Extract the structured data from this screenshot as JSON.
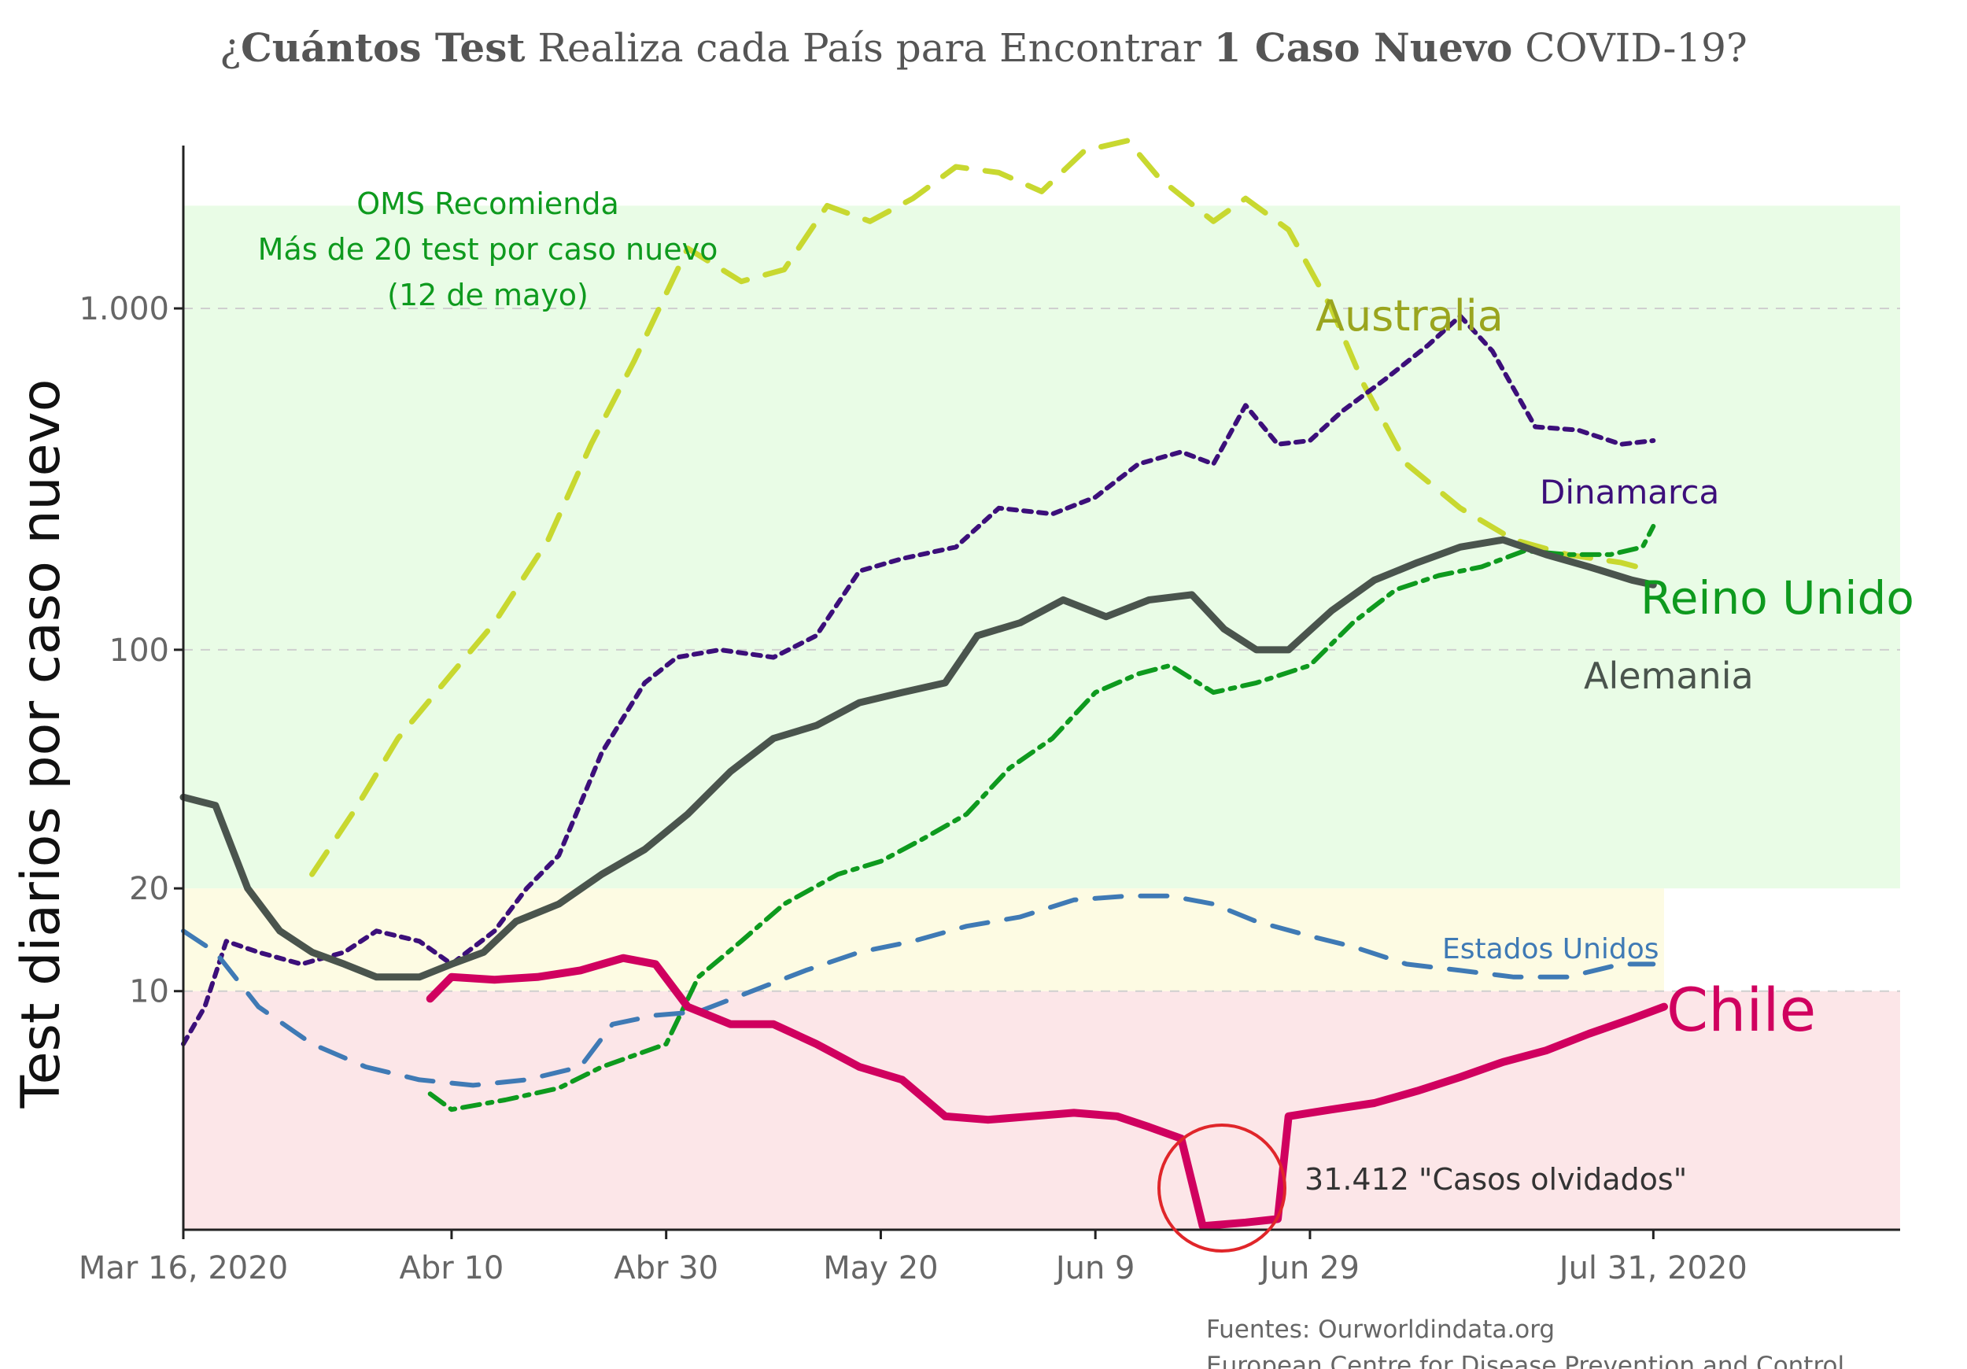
{
  "title": {
    "prefix": "¿",
    "bold1": "Cuántos Test",
    "middle": " Realiza cada País para Encontrar ",
    "bold2": "1 Caso Nuevo",
    "suffix": " COVID-19?"
  },
  "who_note": {
    "line1": "OMS Recomienda",
    "line2": "Más de 20 test por caso nuevo",
    "line3": "(12 de mayo)",
    "color": "#0e9a1e"
  },
  "callout": {
    "label": "31.412 \"Casos olvidados\"",
    "color": "#e0262a"
  },
  "sources": {
    "line1": "Fuentes: Ourworldindata.org",
    "line2": "European Centre for Disease Prevention and Control"
  },
  "chart_data": {
    "type": "line",
    "ylabel": "Test diarios por caso nuevo",
    "yscale": "log",
    "ylim": [
      2,
      3000
    ],
    "xlim": [
      "2020-03-16",
      "2020-08-23"
    ],
    "x_ticks": [
      {
        "date": "2020-03-16",
        "label": "Mar 16, 2020"
      },
      {
        "date": "2020-04-10",
        "label": "Abr 10"
      },
      {
        "date": "2020-04-30",
        "label": "Abr 30"
      },
      {
        "date": "2020-05-20",
        "label": "May 20"
      },
      {
        "date": "2020-06-09",
        "label": "Jun 9"
      },
      {
        "date": "2020-06-29",
        "label": "Jun 29"
      },
      {
        "date": "2020-07-31",
        "label": "Jul 31, 2020"
      }
    ],
    "y_ticks": [
      {
        "value": 10,
        "label": "10",
        "grid": true
      },
      {
        "value": 20,
        "label": "20",
        "grid": false
      },
      {
        "value": 100,
        "label": "100",
        "grid": true
      },
      {
        "value": 1000,
        "label": "1.000",
        "grid": true
      }
    ],
    "bands": [
      {
        "from": 2,
        "to": 10,
        "color": "#fce6e8"
      },
      {
        "from": 10,
        "to": 20,
        "color": "#fdfbe3"
      },
      {
        "from": 20,
        "to": 2000,
        "color": "#e9fce6"
      }
    ],
    "series": [
      {
        "name": "Australia",
        "color": "#c8d830",
        "label_color": "#9aa51e",
        "dash": "dash",
        "width": 7,
        "points": [
          [
            "2020-03-28",
            22
          ],
          [
            "2020-04-01",
            34
          ],
          [
            "2020-04-05",
            55
          ],
          [
            "2020-04-10",
            85
          ],
          [
            "2020-04-14",
            120
          ],
          [
            "2020-04-19",
            210
          ],
          [
            "2020-04-23",
            400
          ],
          [
            "2020-04-27",
            700
          ],
          [
            "2020-05-02",
            1500
          ],
          [
            "2020-05-07",
            1200
          ],
          [
            "2020-05-11",
            1300
          ],
          [
            "2020-05-15",
            2000
          ],
          [
            "2020-05-19",
            1800
          ],
          [
            "2020-05-23",
            2100
          ],
          [
            "2020-05-27",
            2600
          ],
          [
            "2020-05-31",
            2500
          ],
          [
            "2020-06-04",
            2200
          ],
          [
            "2020-06-08",
            2900
          ],
          [
            "2020-06-12",
            3100
          ],
          [
            "2020-06-15",
            2400
          ],
          [
            "2020-06-20",
            1800
          ],
          [
            "2020-06-23",
            2100
          ],
          [
            "2020-06-27",
            1700
          ],
          [
            "2020-07-01",
            1000
          ],
          [
            "2020-07-04",
            600
          ],
          [
            "2020-07-08",
            350
          ],
          [
            "2020-07-13",
            260
          ],
          [
            "2020-07-18",
            210
          ],
          [
            "2020-07-23",
            190
          ],
          [
            "2020-07-28",
            180
          ],
          [
            "2020-07-31",
            170
          ]
        ]
      },
      {
        "name": "Dinamarca",
        "color": "#3c0f7a",
        "label_color": "#3c0f7a",
        "dash": "dot",
        "width": 6,
        "points": [
          [
            "2020-03-16",
            7
          ],
          [
            "2020-03-18",
            9
          ],
          [
            "2020-03-20",
            14
          ],
          [
            "2020-03-23",
            13
          ],
          [
            "2020-03-27",
            12
          ],
          [
            "2020-03-31",
            13
          ],
          [
            "2020-04-03",
            15
          ],
          [
            "2020-04-07",
            14
          ],
          [
            "2020-04-10",
            12
          ],
          [
            "2020-04-14",
            15
          ],
          [
            "2020-04-17",
            20
          ],
          [
            "2020-04-20",
            25
          ],
          [
            "2020-04-24",
            50
          ],
          [
            "2020-04-28",
            80
          ],
          [
            "2020-05-01",
            95
          ],
          [
            "2020-05-05",
            100
          ],
          [
            "2020-05-10",
            95
          ],
          [
            "2020-05-14",
            110
          ],
          [
            "2020-05-18",
            170
          ],
          [
            "2020-05-22",
            185
          ],
          [
            "2020-05-27",
            200
          ],
          [
            "2020-05-31",
            260
          ],
          [
            "2020-06-05",
            250
          ],
          [
            "2020-06-09",
            280
          ],
          [
            "2020-06-13",
            350
          ],
          [
            "2020-06-17",
            380
          ],
          [
            "2020-06-20",
            350
          ],
          [
            "2020-06-23",
            520
          ],
          [
            "2020-06-26",
            400
          ],
          [
            "2020-06-29",
            410
          ],
          [
            "2020-07-02",
            500
          ],
          [
            "2020-07-06",
            620
          ],
          [
            "2020-07-10",
            780
          ],
          [
            "2020-07-13",
            950
          ],
          [
            "2020-07-16",
            750
          ],
          [
            "2020-07-20",
            450
          ],
          [
            "2020-07-24",
            440
          ],
          [
            "2020-07-28",
            400
          ],
          [
            "2020-07-31",
            410
          ]
        ]
      },
      {
        "name": "Reino Unido",
        "color": "#0e9a1e",
        "label_color": "#0e9a1e",
        "dash": "dashdot",
        "width": 6,
        "points": [
          [
            "2020-04-08",
            5
          ],
          [
            "2020-04-10",
            4.5
          ],
          [
            "2020-04-15",
            4.8
          ],
          [
            "2020-04-20",
            5.2
          ],
          [
            "2020-04-24",
            6
          ],
          [
            "2020-04-30",
            7
          ],
          [
            "2020-05-03",
            11
          ],
          [
            "2020-05-07",
            14
          ],
          [
            "2020-05-11",
            18
          ],
          [
            "2020-05-16",
            22
          ],
          [
            "2020-05-20",
            24
          ],
          [
            "2020-05-24",
            28
          ],
          [
            "2020-05-28",
            33
          ],
          [
            "2020-06-01",
            45
          ],
          [
            "2020-06-05",
            55
          ],
          [
            "2020-06-09",
            75
          ],
          [
            "2020-06-13",
            85
          ],
          [
            "2020-06-16",
            90
          ],
          [
            "2020-06-20",
            75
          ],
          [
            "2020-06-24",
            80
          ],
          [
            "2020-06-29",
            90
          ],
          [
            "2020-07-03",
            120
          ],
          [
            "2020-07-07",
            150
          ],
          [
            "2020-07-11",
            165
          ],
          [
            "2020-07-15",
            175
          ],
          [
            "2020-07-19",
            195
          ],
          [
            "2020-07-23",
            190
          ],
          [
            "2020-07-27",
            190
          ],
          [
            "2020-07-30",
            200
          ],
          [
            "2020-07-31",
            230
          ]
        ]
      },
      {
        "name": "Alemania",
        "color": "#4a544d",
        "label_color": "#4a544d",
        "dash": "solid",
        "width": 9,
        "points": [
          [
            "2020-03-16",
            37
          ],
          [
            "2020-03-19",
            35
          ],
          [
            "2020-03-22",
            20
          ],
          [
            "2020-03-25",
            15
          ],
          [
            "2020-03-28",
            13
          ],
          [
            "2020-03-31",
            12
          ],
          [
            "2020-04-03",
            11
          ],
          [
            "2020-04-07",
            11
          ],
          [
            "2020-04-10",
            12
          ],
          [
            "2020-04-13",
            13
          ],
          [
            "2020-04-16",
            16
          ],
          [
            "2020-04-20",
            18
          ],
          [
            "2020-04-24",
            22
          ],
          [
            "2020-04-28",
            26
          ],
          [
            "2020-05-02",
            33
          ],
          [
            "2020-05-06",
            44
          ],
          [
            "2020-05-10",
            55
          ],
          [
            "2020-05-14",
            60
          ],
          [
            "2020-05-18",
            70
          ],
          [
            "2020-05-22",
            75
          ],
          [
            "2020-05-26",
            80
          ],
          [
            "2020-05-29",
            110
          ],
          [
            "2020-06-02",
            120
          ],
          [
            "2020-06-06",
            140
          ],
          [
            "2020-06-10",
            125
          ],
          [
            "2020-06-14",
            140
          ],
          [
            "2020-06-18",
            145
          ],
          [
            "2020-06-21",
            115
          ],
          [
            "2020-06-24",
            100
          ],
          [
            "2020-06-27",
            100
          ],
          [
            "2020-07-01",
            130
          ],
          [
            "2020-07-05",
            160
          ],
          [
            "2020-07-09",
            180
          ],
          [
            "2020-07-13",
            200
          ],
          [
            "2020-07-17",
            210
          ],
          [
            "2020-07-21",
            190
          ],
          [
            "2020-07-25",
            175
          ],
          [
            "2020-07-29",
            160
          ],
          [
            "2020-07-31",
            155
          ]
        ]
      },
      {
        "name": "Estados Unidos",
        "color": "#3f7ab5",
        "label_color": "#3f7ab5",
        "dash": "dash",
        "width": 6,
        "points": [
          [
            "2020-03-16",
            15
          ],
          [
            "2020-03-19",
            13
          ],
          [
            "2020-03-23",
            9
          ],
          [
            "2020-03-28",
            7
          ],
          [
            "2020-04-02",
            6
          ],
          [
            "2020-04-07",
            5.5
          ],
          [
            "2020-04-12",
            5.3
          ],
          [
            "2020-04-17",
            5.5
          ],
          [
            "2020-04-22",
            6
          ],
          [
            "2020-04-25",
            8
          ],
          [
            "2020-04-29",
            8.5
          ],
          [
            "2020-05-03",
            8.7
          ],
          [
            "2020-05-08",
            10
          ],
          [
            "2020-05-13",
            11.5
          ],
          [
            "2020-05-18",
            13
          ],
          [
            "2020-05-23",
            14
          ],
          [
            "2020-05-28",
            15.5
          ],
          [
            "2020-06-02",
            16.5
          ],
          [
            "2020-06-07",
            18.5
          ],
          [
            "2020-06-12",
            19
          ],
          [
            "2020-06-16",
            19
          ],
          [
            "2020-06-20",
            18
          ],
          [
            "2020-06-24",
            16
          ],
          [
            "2020-06-29",
            14.5
          ],
          [
            "2020-07-03",
            13.5
          ],
          [
            "2020-07-08",
            12
          ],
          [
            "2020-07-13",
            11.5
          ],
          [
            "2020-07-18",
            11
          ],
          [
            "2020-07-23",
            11
          ],
          [
            "2020-07-28",
            12
          ],
          [
            "2020-07-31",
            12
          ]
        ]
      },
      {
        "name": "Chile",
        "color": "#d0005f",
        "label_color": "#d0005f",
        "dash": "solid",
        "width": 10,
        "points": [
          [
            "2020-04-08",
            9.5
          ],
          [
            "2020-04-10",
            11
          ],
          [
            "2020-04-14",
            10.8
          ],
          [
            "2020-04-18",
            11
          ],
          [
            "2020-04-22",
            11.5
          ],
          [
            "2020-04-26",
            12.5
          ],
          [
            "2020-04-29",
            12
          ],
          [
            "2020-05-02",
            9
          ],
          [
            "2020-05-06",
            8
          ],
          [
            "2020-05-10",
            8
          ],
          [
            "2020-05-14",
            7
          ],
          [
            "2020-05-18",
            6
          ],
          [
            "2020-05-22",
            5.5
          ],
          [
            "2020-05-26",
            4.3
          ],
          [
            "2020-05-30",
            4.2
          ],
          [
            "2020-06-03",
            4.3
          ],
          [
            "2020-06-07",
            4.4
          ],
          [
            "2020-06-11",
            4.3
          ],
          [
            "2020-06-14",
            4.0
          ],
          [
            "2020-06-17",
            3.7
          ],
          [
            "2020-06-19",
            2.05
          ],
          [
            "2020-06-23",
            2.1
          ],
          [
            "2020-06-26",
            2.15
          ],
          [
            "2020-06-27",
            4.3
          ],
          [
            "2020-07-01",
            4.5
          ],
          [
            "2020-07-05",
            4.7
          ],
          [
            "2020-07-09",
            5.1
          ],
          [
            "2020-07-13",
            5.6
          ],
          [
            "2020-07-17",
            6.2
          ],
          [
            "2020-07-21",
            6.7
          ],
          [
            "2020-07-25",
            7.5
          ],
          [
            "2020-07-29",
            8.3
          ],
          [
            "2020-08-01",
            9
          ]
        ]
      }
    ]
  }
}
